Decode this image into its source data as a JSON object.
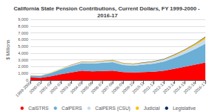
{
  "chart_data": {
    "type": "area",
    "title": "California State Pension Contributions, Current Dollars, FY 1999-2000 - 2016-17",
    "ylabel": "$ Millions",
    "categories": [
      "1999-2000",
      "2000-01",
      "2001-02",
      "2002-03",
      "2003-04",
      "2004-05",
      "2005-06",
      "2006-07",
      "2007-08",
      "2008-09",
      "2009-10",
      "2010-11",
      "2011-12",
      "2012-13",
      "2013-14",
      "2014-15",
      "2015-16",
      "2016-17"
    ],
    "series": [
      {
        "name": "CalSTRS",
        "color": "#FF0000",
        "values": [
          400,
          350,
          600,
          900,
          1150,
          1400,
          1300,
          1350,
          1400,
          1200,
          1150,
          1200,
          1250,
          1400,
          1700,
          2000,
          2300,
          2600
        ]
      },
      {
        "name": "CalPERS",
        "color": "#6BAED6",
        "values": [
          300,
          280,
          450,
          700,
          950,
          1100,
          1150,
          1200,
          1250,
          1050,
          1000,
          1100,
          1200,
          1350,
          1600,
          1900,
          2300,
          2800
        ]
      },
      {
        "name": "CalPERS (CSU)",
        "color": "#C6DBEF",
        "values": [
          40,
          40,
          60,
          90,
          120,
          160,
          180,
          200,
          220,
          200,
          190,
          210,
          230,
          280,
          340,
          450,
          560,
          680
        ]
      },
      {
        "name": "Judicial",
        "color": "#FFC000",
        "values": [
          20,
          18,
          28,
          45,
          60,
          80,
          85,
          90,
          95,
          85,
          80,
          85,
          90,
          100,
          120,
          150,
          200,
          280
        ]
      },
      {
        "name": "Legislative",
        "color": "#08306B",
        "values": [
          8,
          7,
          10,
          15,
          20,
          25,
          27,
          30,
          32,
          28,
          26,
          28,
          30,
          35,
          42,
          52,
          65,
          80
        ]
      }
    ],
    "stacked": true,
    "ylim": [
      0,
      9000
    ],
    "yticks": [
      0,
      {
        "value": 1000,
        "label": "1,000"
      },
      {
        "value": 2000,
        "label": "2,000"
      },
      {
        "value": 3000,
        "label": "3,000"
      },
      {
        "value": 4000,
        "label": "4,000"
      },
      {
        "value": 5000,
        "label": "5,000"
      },
      {
        "value": 6000,
        "label": "6,000"
      },
      {
        "value": 7000,
        "label": "7,000"
      },
      {
        "value": 8000,
        "label": "8,000"
      },
      {
        "value": 9000,
        "label": "9,000"
      }
    ],
    "grid": true,
    "legend": "bottom"
  }
}
